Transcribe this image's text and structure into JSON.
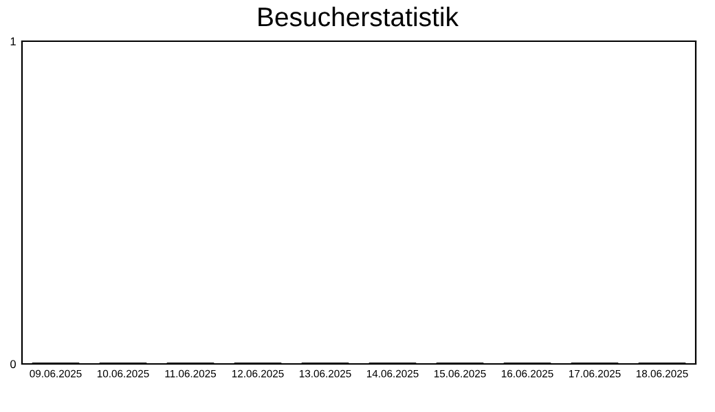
{
  "chart_data": {
    "type": "bar",
    "title": "Besucherstatistik",
    "categories": [
      "09.06.2025",
      "10.06.2025",
      "11.06.2025",
      "12.06.2025",
      "13.06.2025",
      "14.06.2025",
      "15.06.2025",
      "16.06.2025",
      "17.06.2025",
      "18.06.2025"
    ],
    "values": [
      0,
      0,
      0,
      0,
      0,
      0,
      0,
      0,
      0,
      0
    ],
    "color": "#000000",
    "ylim": [
      0,
      1
    ],
    "yticks": [
      0,
      1
    ],
    "grid": false,
    "legend": false
  }
}
